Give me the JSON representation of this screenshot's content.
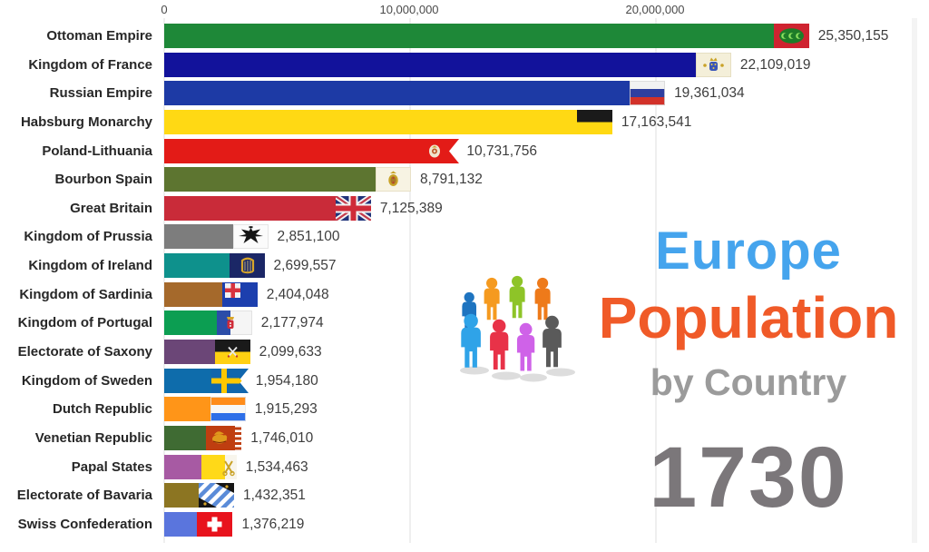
{
  "title": {
    "line1": "Europe",
    "line2": "Population",
    "line3": "by Country"
  },
  "year": "1730",
  "branding": {
    "accent_blue": "#45a4ed",
    "accent_orange": "#f05a28",
    "subtitle_gray": "#9b9b9b",
    "year_gray": "#7b777a"
  },
  "chart_data": {
    "type": "bar",
    "orientation": "horizontal",
    "title": "Europe Population by Country",
    "subtitle": "by Country",
    "year_shown": "1730",
    "x_tick_labels": [
      "0",
      "10,000,000",
      "20,000,000"
    ],
    "x_tick_values": [
      0,
      10000000,
      20000000
    ],
    "xlim": [
      0,
      31000000
    ],
    "grid": "vertical-light",
    "rows": [
      {
        "label": "Ottoman Empire",
        "value": 25350155,
        "value_label": "25,350,155",
        "color": "#1e8838",
        "flag_icon": "ottoman-empire-flag-icon"
      },
      {
        "label": "Kingdom of France",
        "value": 22109019,
        "value_label": "22,109,019",
        "color": "#12129b",
        "flag_icon": "kingdom-of-france-flag-icon"
      },
      {
        "label": "Russian Empire",
        "value": 19361034,
        "value_label": "19,361,034",
        "color": "#1d3aa5",
        "flag_icon": "russian-empire-flag-icon"
      },
      {
        "label": "Habsburg Monarchy",
        "value": 17163541,
        "value_label": "17,163,541",
        "color": "#ffd914",
        "flag_icon": "habsburg-monarchy-flag-icon"
      },
      {
        "label": "Poland-Lithuania",
        "value": 10731756,
        "value_label": "10,731,756",
        "color": "#e31b17",
        "flag_icon": "poland-lithuania-flag-icon"
      },
      {
        "label": "Bourbon Spain",
        "value": 8791132,
        "value_label": "8,791,132",
        "color": "#5d7530",
        "flag_icon": "bourbon-spain-flag-icon"
      },
      {
        "label": "Great Britain",
        "value": 7125389,
        "value_label": "7,125,389",
        "color": "#c92b39",
        "flag_icon": "great-britain-flag-icon"
      },
      {
        "label": "Kingdom of Prussia",
        "value": 2851100,
        "value_label": "2,851,100",
        "color": "#7d7d7d",
        "flag_icon": "kingdom-of-prussia-flag-icon"
      },
      {
        "label": "Kingdom of Ireland",
        "value": 2699557,
        "value_label": "2,699,557",
        "color": "#0e918c",
        "flag_icon": "kingdom-of-ireland-flag-icon"
      },
      {
        "label": "Kingdom of Sardinia",
        "value": 2404048,
        "value_label": "2,404,048",
        "color": "#a5692b",
        "flag_icon": "kingdom-of-sardinia-flag-icon"
      },
      {
        "label": "Kingdom of Portugal",
        "value": 2177974,
        "value_label": "2,177,974",
        "color": "#0c9e52",
        "flag_icon": "kingdom-of-portugal-flag-icon"
      },
      {
        "label": "Electorate of Saxony",
        "value": 2099633,
        "value_label": "2,099,633",
        "color": "#6b4677",
        "flag_icon": "electorate-of-saxony-flag-icon"
      },
      {
        "label": "Kingdom of Sweden",
        "value": 1954180,
        "value_label": "1,954,180",
        "color": "#0e6cab",
        "flag_icon": "kingdom-of-sweden-flag-icon"
      },
      {
        "label": "Dutch Republic",
        "value": 1915293,
        "value_label": "1,915,293",
        "color": "#ff9518",
        "flag_icon": "dutch-republic-flag-icon"
      },
      {
        "label": "Venetian Republic",
        "value": 1746010,
        "value_label": "1,746,010",
        "color": "#3f6b33",
        "flag_icon": "venetian-republic-flag-icon"
      },
      {
        "label": "Papal States",
        "value": 1534463,
        "value_label": "1,534,463",
        "color": "#a75aa3",
        "flag_icon": "papal-states-flag-icon"
      },
      {
        "label": "Electorate of Bavaria",
        "value": 1432351,
        "value_label": "1,432,351",
        "color": "#8c7522",
        "flag_icon": "electorate-of-bavaria-flag-icon"
      },
      {
        "label": "Swiss Confederation",
        "value": 1376219,
        "value_label": "1,376,219",
        "color": "#5a75dd",
        "flag_icon": "swiss-confederation-flag-icon"
      }
    ]
  }
}
